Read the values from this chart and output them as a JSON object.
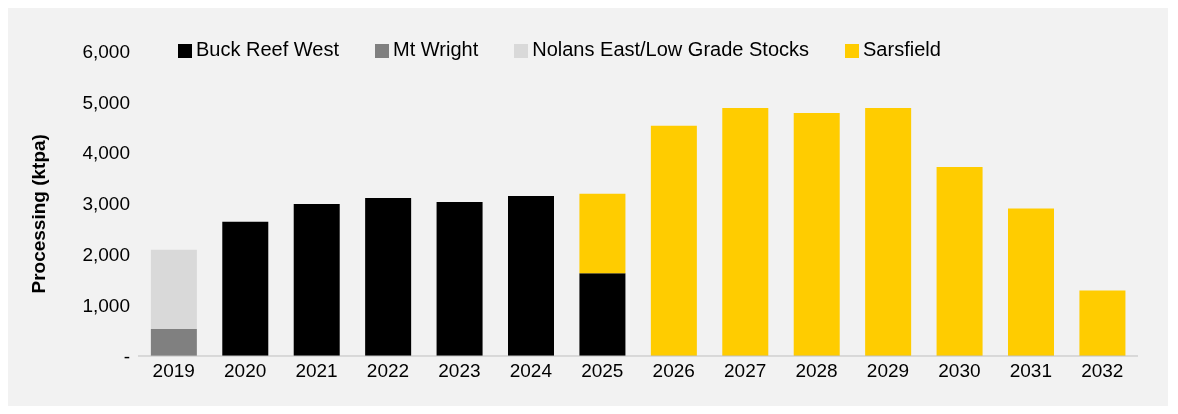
{
  "chart_data": {
    "type": "bar",
    "stacked": true,
    "ylabel": "Processing (ktpa)",
    "categories": [
      "2019",
      "2020",
      "2021",
      "2022",
      "2023",
      "2024",
      "2025",
      "2026",
      "2027",
      "2028",
      "2029",
      "2030",
      "2031",
      "2032"
    ],
    "series": [
      {
        "name": "Mt Wright",
        "color": "#808080",
        "values": [
          530,
          null,
          null,
          null,
          null,
          null,
          null,
          null,
          null,
          null,
          null,
          null,
          null,
          null
        ]
      },
      {
        "name": "Nolans East/Low Grade Stocks",
        "color": "#d9d9d9",
        "values": [
          1560,
          null,
          null,
          null,
          null,
          null,
          null,
          null,
          null,
          null,
          null,
          null,
          null,
          null
        ]
      },
      {
        "name": "Buck Reef West",
        "color": "#000000",
        "values": [
          null,
          2640,
          2990,
          3110,
          3030,
          3150,
          1630,
          null,
          null,
          null,
          null,
          null,
          null,
          null
        ]
      },
      {
        "name": "Sarsfield",
        "color": "#ffcc00",
        "values": [
          null,
          null,
          null,
          null,
          null,
          null,
          1560,
          4530,
          4880,
          4780,
          4880,
          3720,
          2900,
          1290
        ]
      }
    ],
    "ylim": [
      0,
      6000
    ],
    "yticks": [
      {
        "value": 0,
        "label": "-"
      },
      {
        "value": 1000,
        "label": "1,000"
      },
      {
        "value": 2000,
        "label": "2,000"
      },
      {
        "value": 3000,
        "label": "3,000"
      },
      {
        "value": 4000,
        "label": "4,000"
      },
      {
        "value": 5000,
        "label": "5,000"
      },
      {
        "value": 6000,
        "label": "6,000"
      }
    ],
    "grid": false,
    "legend": "top left"
  }
}
